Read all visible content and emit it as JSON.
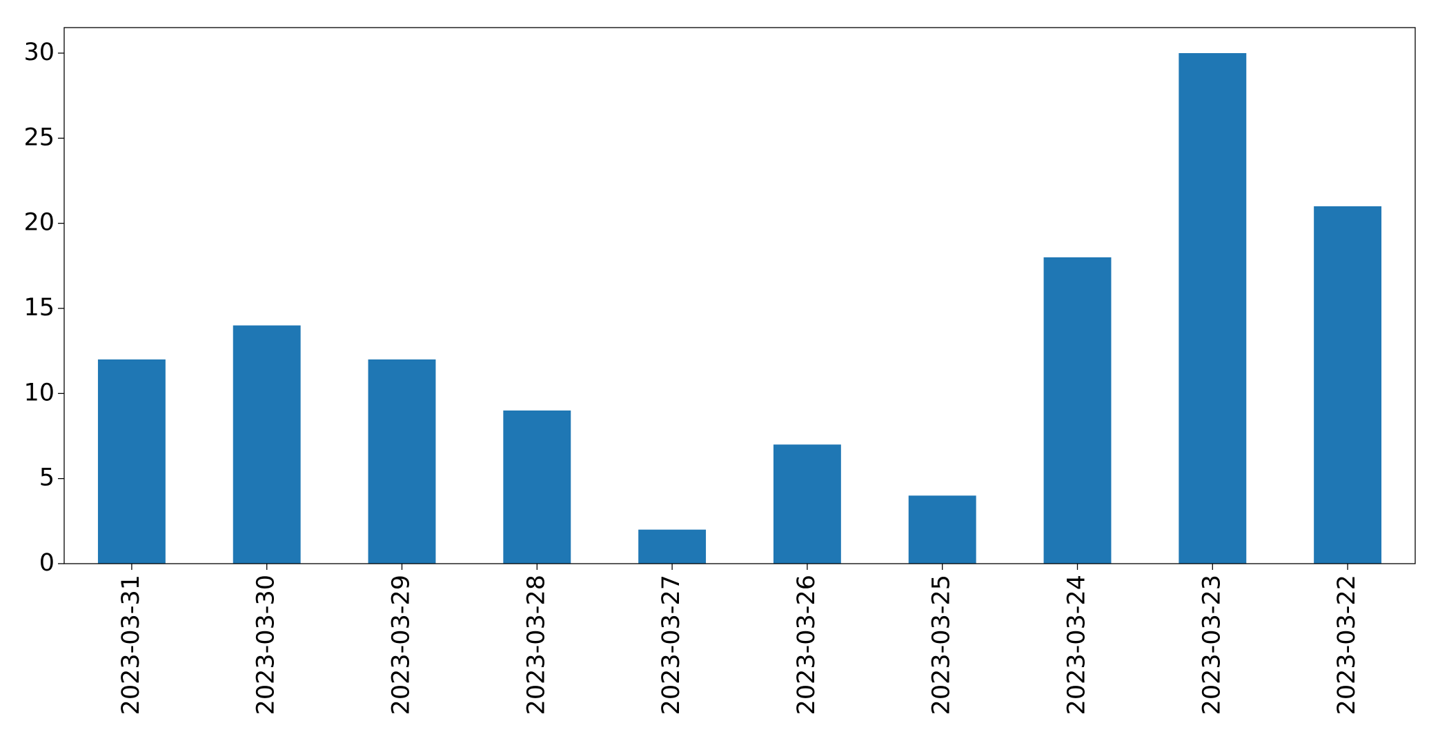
{
  "chart_data": {
    "type": "bar",
    "categories": [
      "2023-03-31",
      "2023-03-30",
      "2023-03-29",
      "2023-03-28",
      "2023-03-27",
      "2023-03-26",
      "2023-03-25",
      "2023-03-24",
      "2023-03-23",
      "2023-03-22"
    ],
    "values": [
      12,
      14,
      12,
      9,
      2,
      7,
      4,
      18,
      30,
      21
    ],
    "color": "#1f77b4",
    "ylim": [
      0,
      31.5
    ],
    "yticks": [
      0,
      5,
      10,
      15,
      20,
      25,
      30
    ],
    "grid": false
  }
}
